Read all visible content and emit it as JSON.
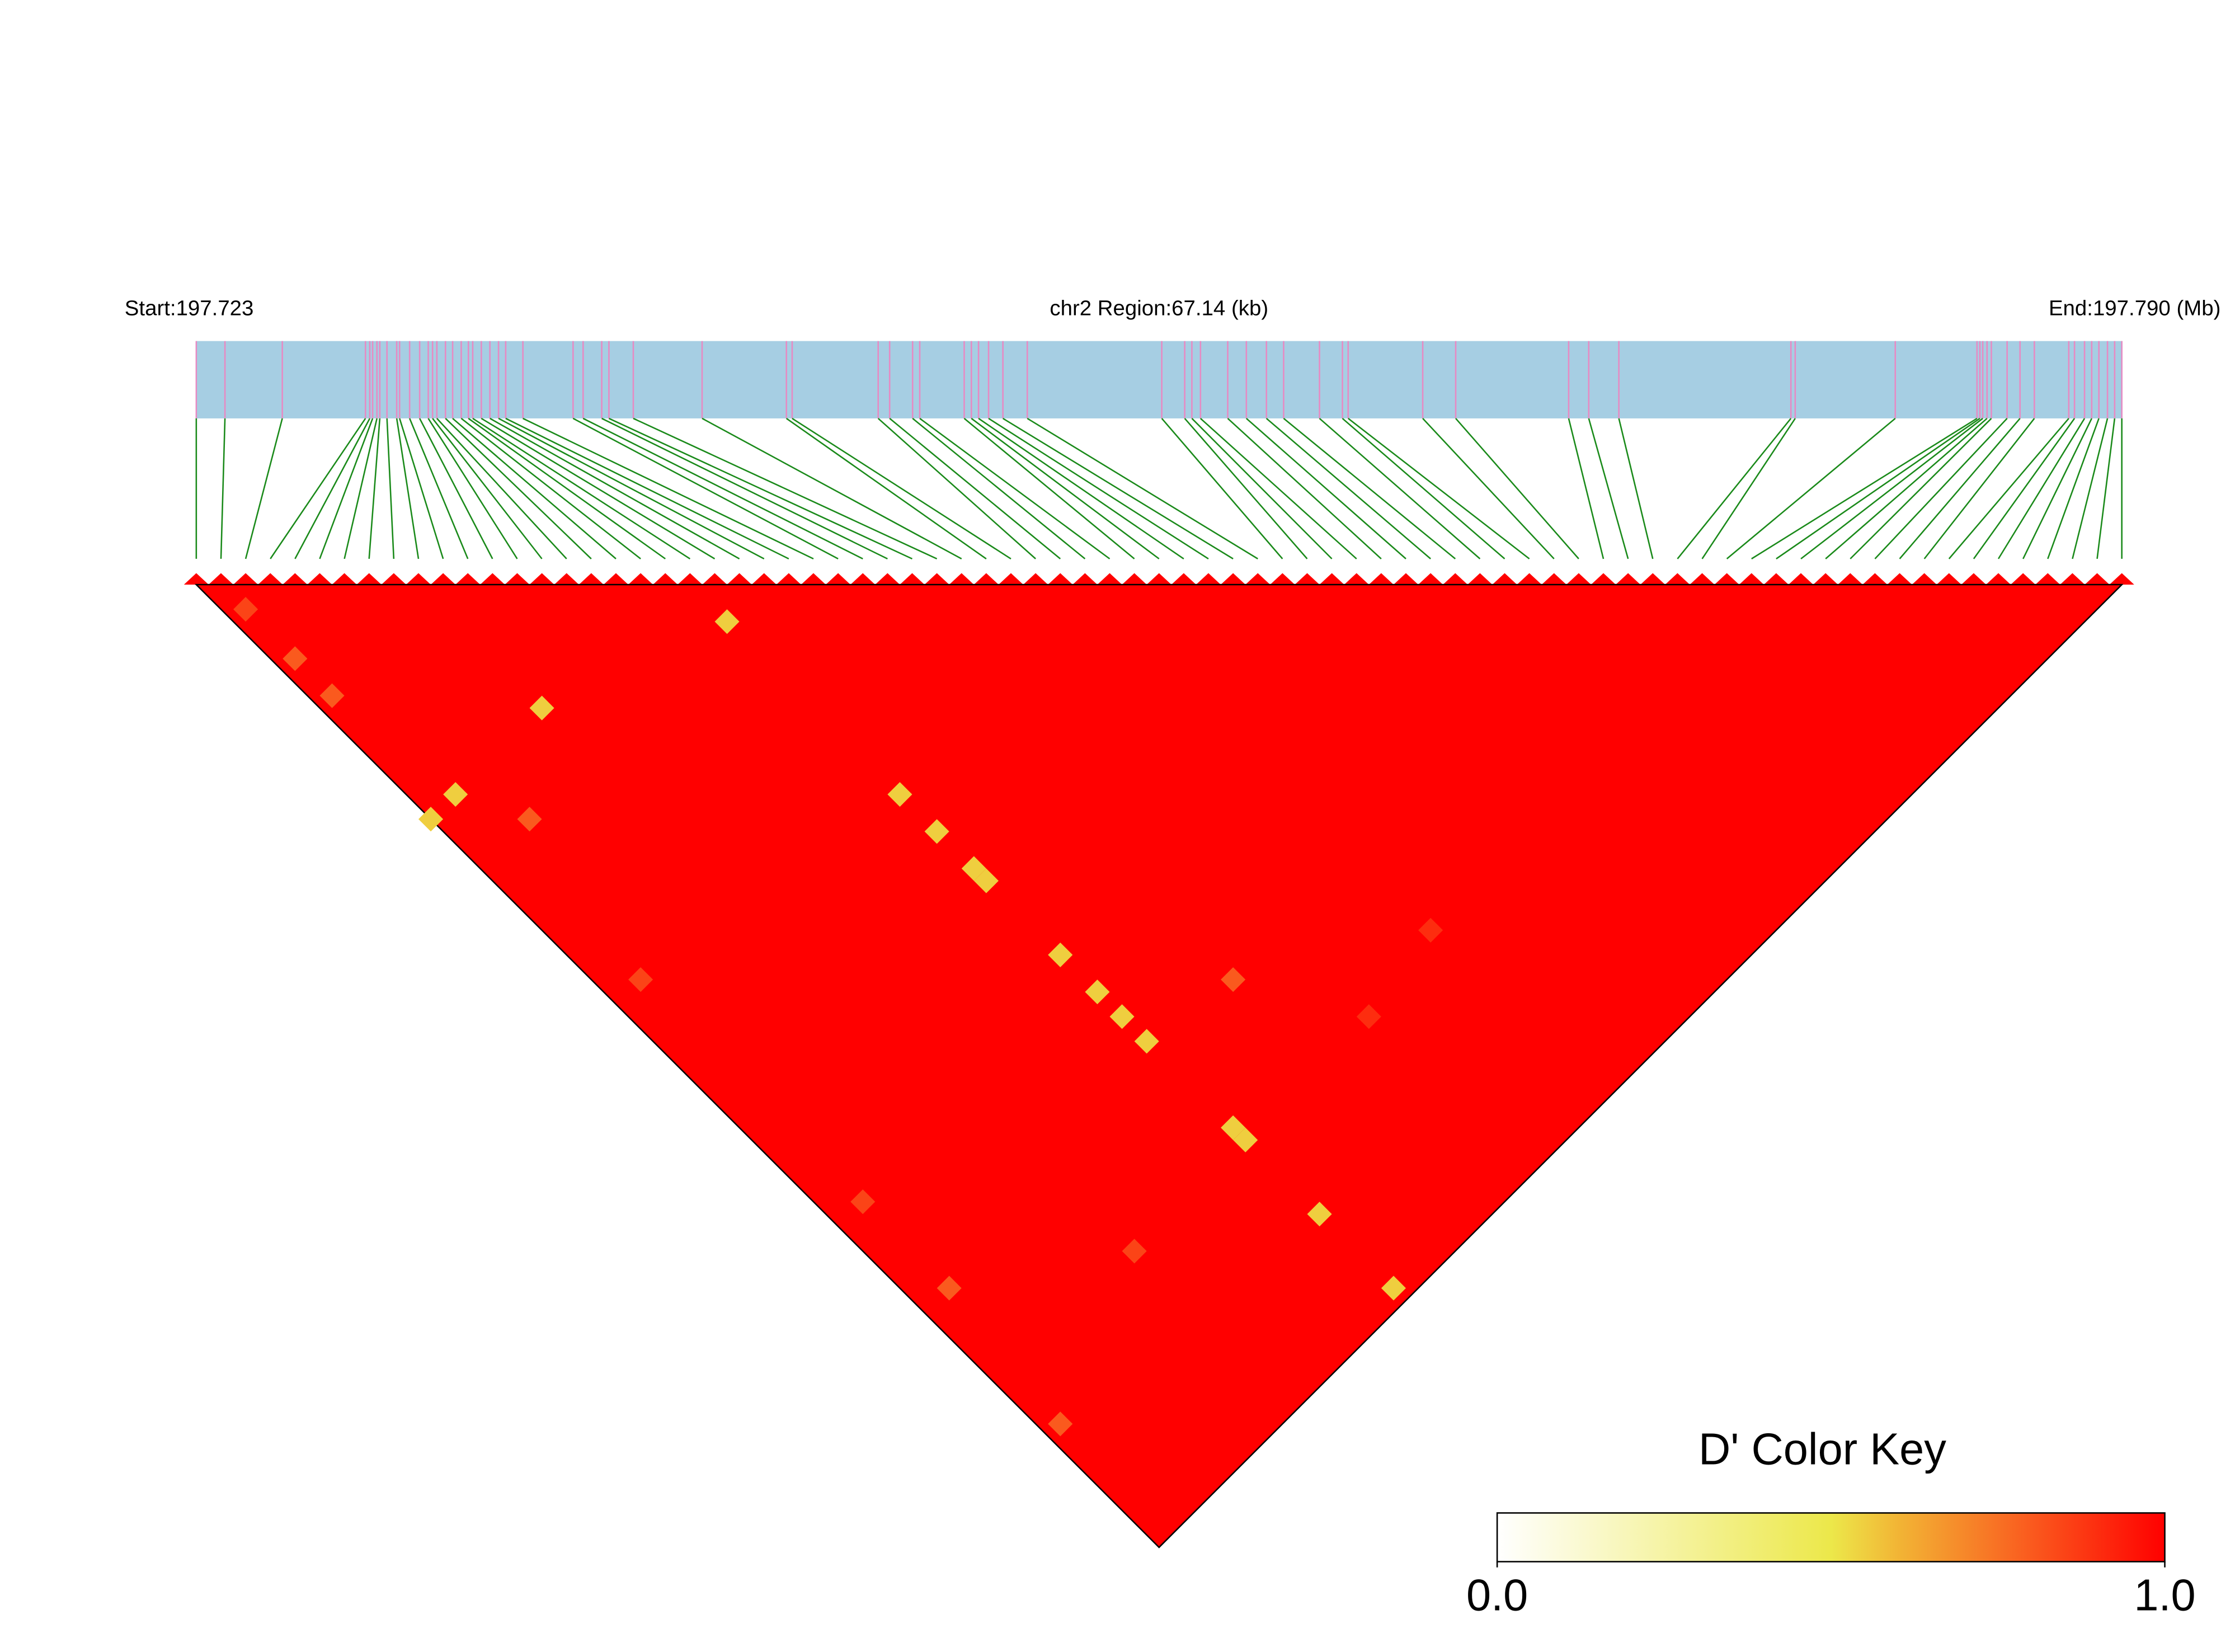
{
  "chart_data": {
    "type": "ld-heatmap",
    "start_label": "Start:197.723",
    "region_label": "chr2 Region:67.14 (kb)",
    "end_label": "End:197.790 (Mb)",
    "snp_positions": [
      197.723,
      197.724,
      197.726,
      197.7289,
      197.72905,
      197.72915,
      197.7293,
      197.7294,
      197.72965,
      197.72999,
      197.73009,
      197.73044,
      197.73079,
      197.73109,
      197.73124,
      197.73139,
      197.73169,
      197.73194,
      197.73224,
      197.73249,
      197.73264,
      197.73294,
      197.73324,
      197.73354,
      197.73379,
      197.73439,
      197.73614,
      197.73649,
      197.73714,
      197.73739,
      197.73824,
      197.74064,
      197.74358,
      197.74378,
      197.74678,
      197.74718,
      197.74798,
      197.74823,
      197.74978,
      197.75003,
      197.75028,
      197.75063,
      197.75113,
      197.75198,
      197.75667,
      197.75747,
      197.75772,
      197.75802,
      197.75897,
      197.75962,
      197.76032,
      197.76092,
      197.76217,
      197.76297,
      197.76317,
      197.76577,
      197.76692,
      197.77086,
      197.77156,
      197.77261,
      197.77861,
      197.77876,
      197.78225,
      197.7851,
      197.7852,
      197.7853,
      197.78545,
      197.7856,
      197.78615,
      197.7866,
      197.7871,
      197.7883,
      197.7885,
      197.78885,
      197.7891,
      197.78935,
      197.78965,
      197.7899,
      197.79015
    ],
    "cells": [
      {
        "snp1": 20,
        "snp2": 23,
        "dprime": 0.55
      },
      {
        "snp1": 9,
        "snp2": 19,
        "dprime": 0.55
      },
      {
        "snp1": 2,
        "snp2": 19,
        "dprime": 0.55
      },
      {
        "snp1": 0,
        "snp2": 19,
        "dprime": 0.55
      },
      {
        "snp1": 20,
        "snp2": 37,
        "dprime": 0.55
      },
      {
        "snp1": 20,
        "snp2": 40,
        "dprime": 0.55
      },
      {
        "snp1": 20,
        "snp2": 43,
        "dprime": 0.55
      },
      {
        "snp1": 20,
        "snp2": 44,
        "dprime": 0.55
      },
      {
        "snp1": 20,
        "snp2": 50,
        "dprime": 0.55
      },
      {
        "snp1": 20,
        "snp2": 53,
        "dprime": 0.55
      },
      {
        "snp1": 20,
        "snp2": 55,
        "dprime": 0.55
      },
      {
        "snp1": 20,
        "snp2": 57,
        "dprime": 0.55
      },
      {
        "snp1": 20,
        "snp2": 64,
        "dprime": 0.55
      },
      {
        "snp1": 20,
        "snp2": 65,
        "dprime": 0.55
      },
      {
        "snp1": 20,
        "snp2": 71,
        "dprime": 0.55
      },
      {
        "snp1": 20,
        "snp2": 77,
        "dprime": 0.55
      },
      {
        "snp1": 1,
        "snp2": 10,
        "dprime": 0.8
      },
      {
        "snp1": 1,
        "snp2": 7,
        "dprime": 0.8
      },
      {
        "snp1": 1,
        "snp2": 3,
        "dprime": 0.85
      },
      {
        "snp1": 2,
        "snp2": 34,
        "dprime": 0.85
      },
      {
        "snp1": 2,
        "snp2": 59,
        "dprime": 0.8
      },
      {
        "snp1": 11,
        "snp2": 65,
        "dprime": 0.85
      },
      {
        "snp1": 1,
        "snp2": 69,
        "dprime": 0.8
      },
      {
        "snp1": 36,
        "snp2": 64,
        "dprime": 0.9
      },
      {
        "snp1": 30,
        "snp2": 65,
        "dprime": 0.9
      },
      {
        "snp1": 26,
        "snp2": 58,
        "dprime": 0.8
      },
      {
        "snp1": 2,
        "snp2": 52,
        "dprime": 0.85
      },
      {
        "snp1": 4,
        "snp2": 23,
        "dprime": 0.8
      }
    ],
    "colorkey": {
      "title": "D' Color Key",
      "lim": [
        0,
        1
      ],
      "ticks": [
        {
          "value": 0,
          "label": "0.0"
        },
        {
          "value": 1,
          "label": "1.0"
        }
      ]
    }
  }
}
